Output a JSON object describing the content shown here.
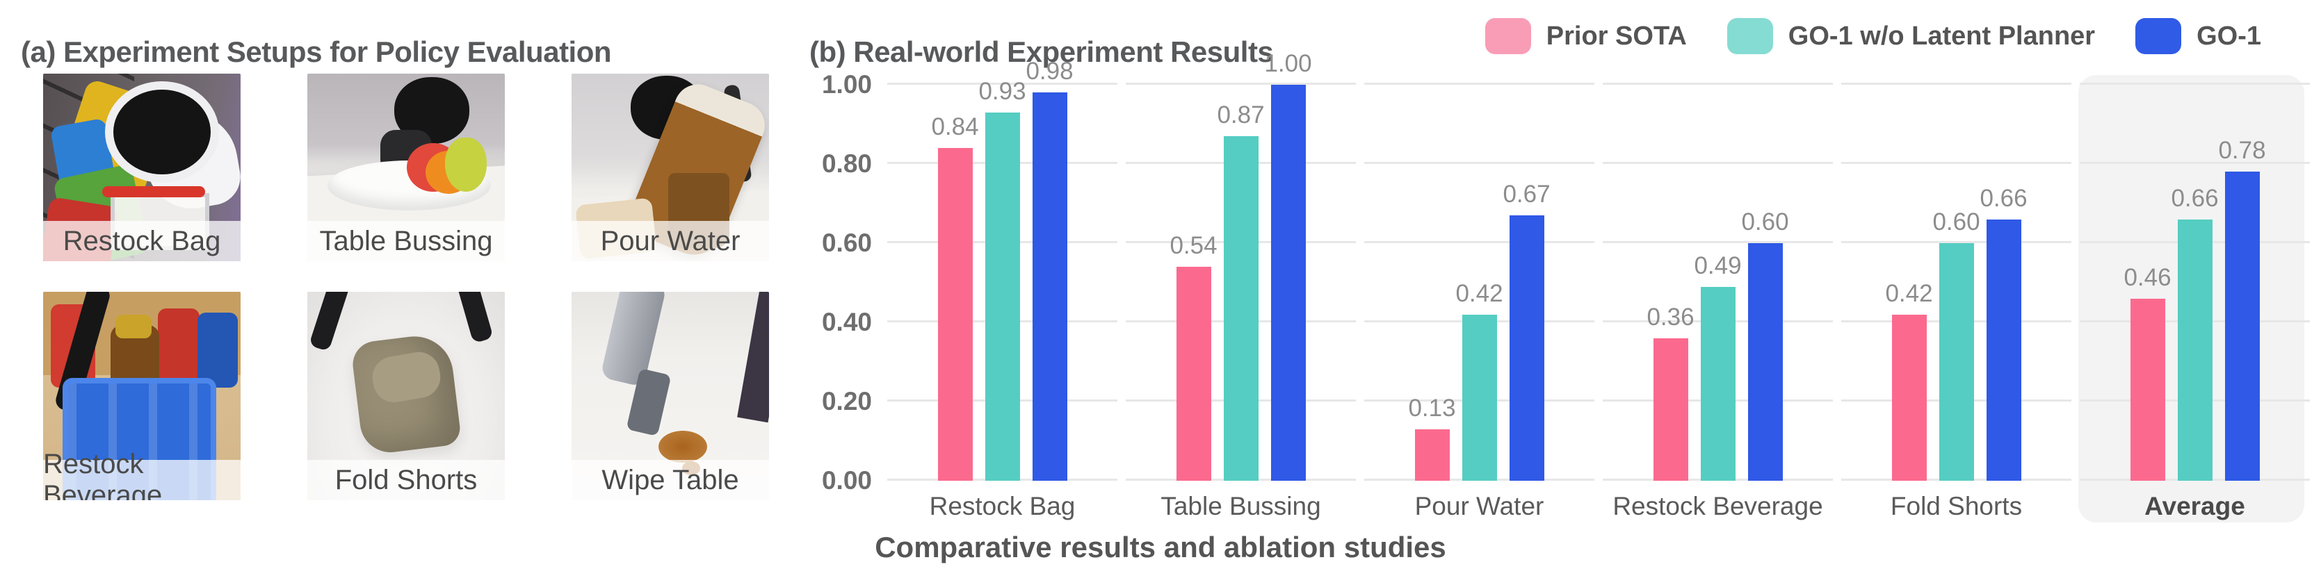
{
  "panel_a": {
    "title": "(a) Experiment Setups for Policy Evaluation",
    "photos": [
      {
        "label": "Restock Bag"
      },
      {
        "label": "Table Bussing"
      },
      {
        "label": "Pour Water"
      },
      {
        "label": "Restock Beverage"
      },
      {
        "label": "Fold Shorts"
      },
      {
        "label": "Wipe Table"
      }
    ]
  },
  "panel_b": {
    "title": "(b) Real-world Experiment Results",
    "legend": [
      {
        "label": "Prior SOTA",
        "swatch": "#f99db6"
      },
      {
        "label": "GO-1 w/o Latent Planner",
        "swatch": "#85dcd3"
      },
      {
        "label": "GO-1",
        "swatch": "#2f5be7"
      }
    ],
    "caption": "Comparative results and ablation studies"
  },
  "chart_data": {
    "type": "bar",
    "title": "(b) Real-world Experiment Results",
    "categories": [
      "Restock Bag",
      "Table Bussing",
      "Pour Water",
      "Restock Beverage",
      "Fold Shorts",
      "Average"
    ],
    "series": [
      {
        "name": "Prior SOTA",
        "color": "#fb6a8e",
        "values": [
          0.84,
          0.54,
          0.13,
          0.36,
          0.42,
          0.46
        ]
      },
      {
        "name": "GO-1 w/o Latent Planner",
        "color": "#55cdc2",
        "values": [
          0.93,
          0.87,
          0.42,
          0.49,
          0.6,
          0.66
        ]
      },
      {
        "name": "GO-1",
        "color": "#2f59e6",
        "values": [
          0.98,
          1.0,
          0.67,
          0.6,
          0.66,
          0.78
        ]
      }
    ],
    "ylim": [
      0,
      1.0
    ],
    "ytick_values": [
      1.0,
      0.8,
      0.6,
      0.4,
      0.2,
      0.0
    ],
    "ytick_labels": [
      "1.00",
      "0.80",
      "0.60",
      "0.40",
      "0.20",
      "0.00"
    ],
    "gridline_values": [
      0,
      0.2,
      0.4,
      0.6,
      0.8,
      1.0
    ],
    "grid": true,
    "legend_position": "top-right",
    "highlight_category": "Average",
    "highlight_color": "#f3f3f4",
    "caption": "Comparative results and ablation studies"
  }
}
